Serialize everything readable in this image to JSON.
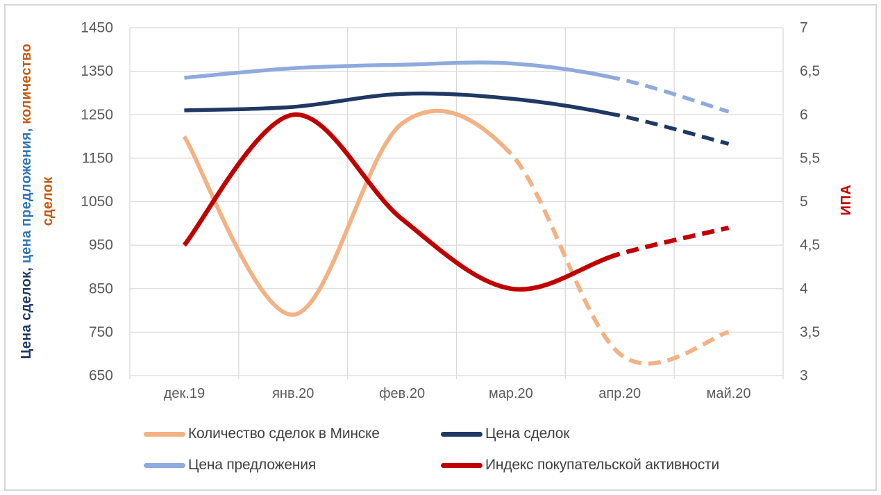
{
  "chart": {
    "type": "line",
    "categories": [
      "дек.19",
      "янв.20",
      "фев.20",
      "мар.20",
      "апр.20",
      "май.20"
    ],
    "left_axis": {
      "min": 650,
      "max": 1450,
      "step": 100,
      "ticks": [
        "1450",
        "1350",
        "1250",
        "1150",
        "1050",
        "950",
        "850",
        "750",
        "650"
      ],
      "title_lines": [
        [
          {
            "text": "Цена сделок, ",
            "color": "#1F3864"
          },
          {
            "text": "цена предложения, ",
            "color": "#2E75B6"
          },
          {
            "text": "количество",
            "color": "#C55A11"
          }
        ],
        [
          {
            "text": "сделок",
            "color": "#C55A11"
          }
        ]
      ]
    },
    "right_axis": {
      "min": 3,
      "max": 7,
      "step": 0.5,
      "ticks": [
        "7",
        "6,5",
        "6",
        "5,5",
        "5",
        "4,5",
        "4",
        "3,5",
        "3"
      ],
      "title": "ИПА",
      "title_color": "#C00000"
    },
    "grid": {
      "color": "#D9D9D9",
      "on": true
    },
    "series": [
      {
        "name": "Количество сделок в Минске",
        "axis": "left",
        "color": "#F4B183",
        "values": [
          1200,
          790,
          1230,
          1160,
          700,
          750
        ],
        "solid_until_index": 3,
        "dashed_after": true
      },
      {
        "name": "Цена сделок",
        "axis": "left",
        "color": "#1F3864",
        "values": [
          1260,
          1268,
          1298,
          1287,
          1248,
          1183
        ],
        "solid_until_index": 4,
        "dashed_after": true
      },
      {
        "name": "Цена предложения",
        "axis": "left",
        "color": "#8FAADC",
        "values": [
          1335,
          1357,
          1365,
          1368,
          1332,
          1257
        ],
        "solid_until_index": 4,
        "dashed_after": true
      },
      {
        "name": "Индекс покупательской активности",
        "axis": "right",
        "color": "#C00000",
        "values": [
          4.5,
          6.0,
          4.8,
          4.0,
          4.4,
          4.7
        ],
        "solid_until_index": 4,
        "dashed_after": true
      }
    ],
    "legend_order": [
      0,
      1,
      2,
      3
    ],
    "text_color": "#595959"
  }
}
